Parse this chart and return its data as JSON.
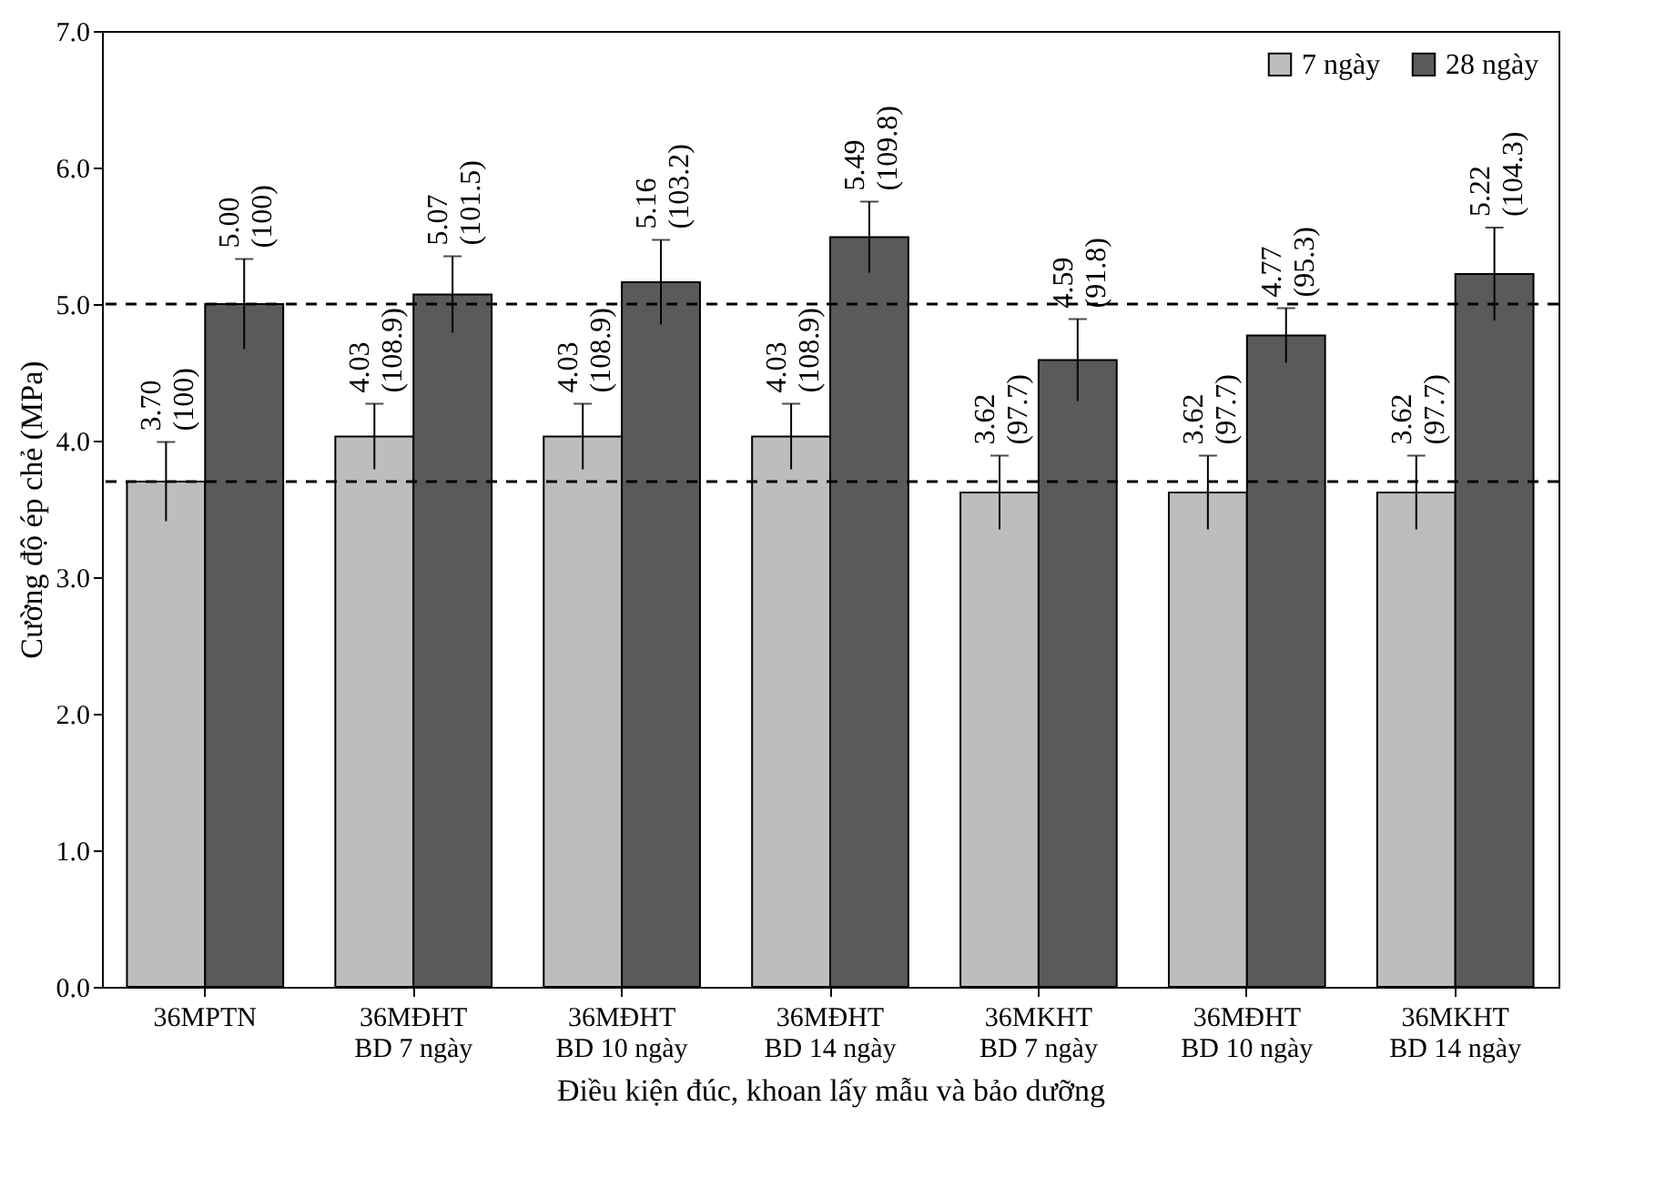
{
  "chart_data": {
    "type": "bar",
    "xlabel": "Điều kiện đúc, khoan lấy mẫu và bảo dưỡng",
    "ylabel": "Cường độ ép chẻ (MPa)",
    "categories": [
      "36MPTN",
      "36MĐHT\nBD 7 ngày",
      "36MĐHT\nBD 10 ngày",
      "36MĐHT\nBD 14 ngày",
      "36MKHT\nBD 7 ngày",
      "36MĐHT\nBD 10 ngày",
      "36MKHT\nBD 14 ngày"
    ],
    "series": [
      {
        "name": "7 ngày",
        "color": "#bdbdbd",
        "values": [
          3.7,
          4.03,
          4.03,
          4.03,
          3.62,
          3.62,
          3.62
        ],
        "errors": [
          0.29,
          0.24,
          0.24,
          0.24,
          0.27,
          0.27,
          0.27
        ],
        "value_labels": [
          "3.70\n(100)",
          "4.03\n(108.9)",
          "4.03\n(108.9)",
          "4.03\n(108.9)",
          "3.62\n(97.7)",
          "3.62\n(97.7)",
          "3.62\n(97.7)"
        ]
      },
      {
        "name": "28 ngày",
        "color": "#5a5a5a",
        "values": [
          5.0,
          5.07,
          5.16,
          5.49,
          4.59,
          4.77,
          5.22
        ],
        "errors": [
          0.33,
          0.28,
          0.31,
          0.26,
          0.3,
          0.2,
          0.34
        ],
        "value_labels": [
          "5.00\n(100)",
          "5.07\n(101.5)",
          "5.16\n(103.2)",
          "5.49\n(109.8)",
          "4.59\n(91.8)",
          "4.77\n(95.3)",
          "5.22\n(104.3)"
        ]
      }
    ],
    "ylim": [
      0,
      7
    ],
    "yticks": [
      {
        "value": 0,
        "label": "0.0"
      },
      {
        "value": 1,
        "label": "1.0"
      },
      {
        "value": 2,
        "label": "2.0"
      },
      {
        "value": 3,
        "label": "3.0"
      },
      {
        "value": 4,
        "label": "4.0"
      },
      {
        "value": 5,
        "label": "5.0"
      },
      {
        "value": 6,
        "label": "6.0"
      },
      {
        "value": 7,
        "label": "7.0"
      }
    ],
    "ref_lines": [
      {
        "axis": "y",
        "value": 3.7,
        "line_style": "dashed",
        "color": "#000000"
      },
      {
        "axis": "y",
        "value": 5.0,
        "line_style": "dashed",
        "color": "#000000"
      }
    ],
    "grid": false,
    "legend": "top right"
  }
}
